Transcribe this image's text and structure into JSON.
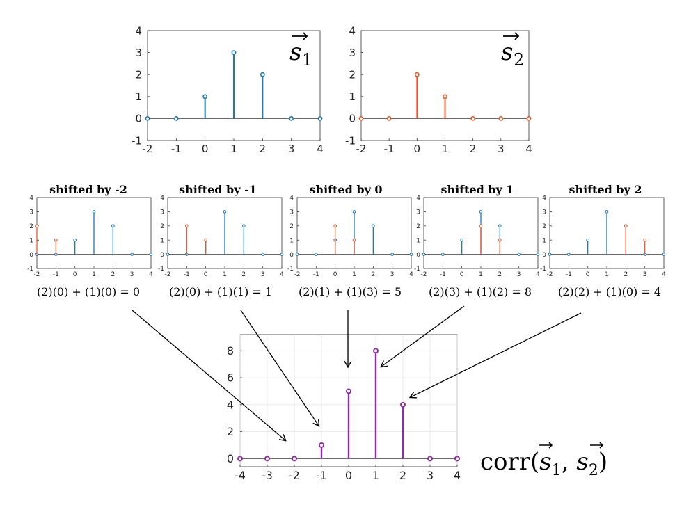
{
  "colors": {
    "blue": "#1f77b4",
    "orange": "#e8592b",
    "purple": "#8e2ea5"
  },
  "chart_data": [
    {
      "id": "s1",
      "type": "stem",
      "label_symbol": "s",
      "label_sub": "1",
      "x": [
        -2,
        -1,
        0,
        1,
        2,
        3,
        4
      ],
      "ylim": [
        -1,
        4
      ],
      "xlim": [
        -2,
        4
      ],
      "xticks": [
        -2,
        -1,
        0,
        1,
        2,
        3,
        4
      ],
      "yticks": [
        -1,
        0,
        1,
        2,
        3,
        4
      ],
      "grid": false,
      "series": [
        {
          "color": "blue",
          "values": [
            0,
            0,
            1,
            3,
            2,
            0,
            0
          ]
        }
      ]
    },
    {
      "id": "s2",
      "type": "stem",
      "label_symbol": "s",
      "label_sub": "2",
      "x": [
        -2,
        -1,
        0,
        1,
        2,
        3,
        4
      ],
      "ylim": [
        -1,
        4
      ],
      "xlim": [
        -2,
        4
      ],
      "xticks": [
        -2,
        -1,
        0,
        1,
        2,
        3,
        4
      ],
      "yticks": [
        -1,
        0,
        1,
        2,
        3,
        4
      ],
      "grid": false,
      "series": [
        {
          "color": "orange",
          "values": [
            0,
            0,
            2,
            1,
            0,
            0,
            0
          ]
        }
      ]
    },
    {
      "id": "shift-2",
      "type": "stem",
      "title": "shifted by -2",
      "equation": "(2)(0) + (1)(0) = 0",
      "x": [
        -2,
        -1,
        0,
        1,
        2,
        3,
        4
      ],
      "ylim": [
        -1,
        4
      ],
      "xlim": [
        -2,
        4
      ],
      "xticks": [
        -2,
        -1,
        0,
        1,
        2,
        3,
        4
      ],
      "yticks": [
        -1,
        0,
        1,
        2,
        3,
        4
      ],
      "grid": false,
      "series": [
        {
          "color": "blue",
          "values": [
            0,
            0,
            1,
            3,
            2,
            0,
            0
          ]
        },
        {
          "color": "orange",
          "x": [
            -2,
            -1
          ],
          "values": [
            2,
            1
          ]
        }
      ]
    },
    {
      "id": "shift-1",
      "type": "stem",
      "title": "shifted by -1",
      "equation": "(2)(0) + (1)(1) = 1",
      "x": [
        -2,
        -1,
        0,
        1,
        2,
        3,
        4
      ],
      "ylim": [
        -1,
        4
      ],
      "xlim": [
        -2,
        4
      ],
      "xticks": [
        -2,
        -1,
        0,
        1,
        2,
        3,
        4
      ],
      "yticks": [
        -1,
        0,
        1,
        2,
        3,
        4
      ],
      "grid": false,
      "series": [
        {
          "color": "blue",
          "values": [
            0,
            0,
            1,
            3,
            2,
            0,
            0
          ]
        },
        {
          "color": "orange",
          "x": [
            -1,
            0
          ],
          "values": [
            2,
            1
          ]
        }
      ]
    },
    {
      "id": "shift0",
      "type": "stem",
      "title": "shifted by 0",
      "equation": "(2)(1) + (1)(3) = 5",
      "x": [
        -2,
        -1,
        0,
        1,
        2,
        3,
        4
      ],
      "ylim": [
        -1,
        4
      ],
      "xlim": [
        -2,
        4
      ],
      "xticks": [
        -2,
        -1,
        0,
        1,
        2,
        3,
        4
      ],
      "yticks": [
        -1,
        0,
        1,
        2,
        3,
        4
      ],
      "grid": false,
      "series": [
        {
          "color": "blue",
          "values": [
            0,
            0,
            1,
            3,
            2,
            0,
            0
          ]
        },
        {
          "color": "orange",
          "x": [
            0,
            1
          ],
          "values": [
            2,
            1
          ]
        }
      ]
    },
    {
      "id": "shift1",
      "type": "stem",
      "title": "shifted by 1",
      "equation": "(2)(3) + (1)(2) = 8",
      "x": [
        -2,
        -1,
        0,
        1,
        2,
        3,
        4
      ],
      "ylim": [
        -1,
        4
      ],
      "xlim": [
        -2,
        4
      ],
      "xticks": [
        -2,
        -1,
        0,
        1,
        2,
        3,
        4
      ],
      "yticks": [
        -1,
        0,
        1,
        2,
        3,
        4
      ],
      "grid": false,
      "series": [
        {
          "color": "blue",
          "values": [
            0,
            0,
            1,
            3,
            2,
            0,
            0
          ]
        },
        {
          "color": "orange",
          "x": [
            1,
            2
          ],
          "values": [
            2,
            1
          ]
        }
      ]
    },
    {
      "id": "shift2",
      "type": "stem",
      "title": "shifted by 2",
      "equation": "(2)(2) + (1)(0) = 4",
      "x": [
        -2,
        -1,
        0,
        1,
        2,
        3,
        4
      ],
      "ylim": [
        -1,
        4
      ],
      "xlim": [
        -2,
        4
      ],
      "xticks": [
        -2,
        -1,
        0,
        1,
        2,
        3,
        4
      ],
      "yticks": [
        -1,
        0,
        1,
        2,
        3,
        4
      ],
      "grid": false,
      "series": [
        {
          "color": "blue",
          "values": [
            0,
            0,
            1,
            3,
            2,
            0,
            0
          ]
        },
        {
          "color": "orange",
          "x": [
            2,
            3
          ],
          "values": [
            2,
            1
          ]
        }
      ]
    },
    {
      "id": "corr",
      "type": "stem",
      "label_text": "corr(s1, s2)",
      "x": [
        -4,
        -3,
        -2,
        -1,
        0,
        1,
        2,
        3,
        4
      ],
      "ylim": [
        -0.6,
        9.2
      ],
      "xlim": [
        -4,
        4
      ],
      "xticks": [
        -4,
        -3,
        -2,
        -1,
        0,
        1,
        2,
        3,
        4
      ],
      "yticks": [
        0,
        2,
        4,
        6,
        8
      ],
      "grid": true,
      "series": [
        {
          "color": "purple",
          "values": [
            0,
            0,
            0,
            1,
            5,
            8,
            4,
            0,
            0
          ]
        }
      ]
    }
  ]
}
